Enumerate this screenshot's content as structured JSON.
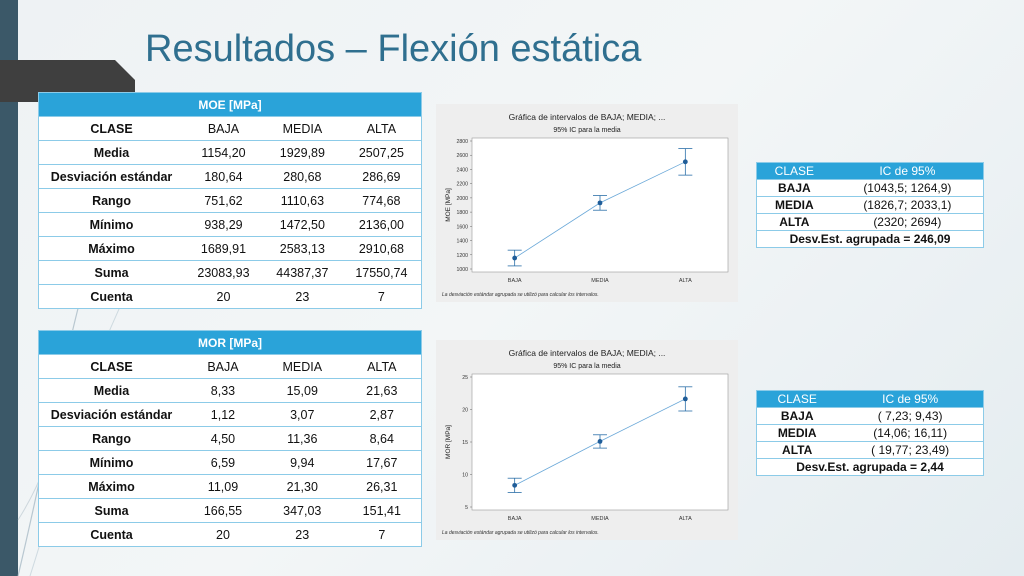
{
  "title": "Resultados – Flexión estática",
  "moe_table": {
    "header": "MOE [MPa]",
    "columns": [
      "CLASE",
      "BAJA",
      "MEDIA",
      "ALTA"
    ],
    "rows": [
      [
        "Media",
        "1154,20",
        "1929,89",
        "2507,25"
      ],
      [
        "Desviación estándar",
        "180,64",
        "280,68",
        "286,69"
      ],
      [
        "Rango",
        "751,62",
        "1110,63",
        "774,68"
      ],
      [
        "Mínimo",
        "938,29",
        "1472,50",
        "2136,00"
      ],
      [
        "Máximo",
        "1689,91",
        "2583,13",
        "2910,68"
      ],
      [
        "Suma",
        "23083,93",
        "44387,37",
        "17550,74"
      ],
      [
        "Cuenta",
        "20",
        "23",
        "7"
      ]
    ]
  },
  "mor_table": {
    "header": "MOR [MPa]",
    "columns": [
      "CLASE",
      "BAJA",
      "MEDIA",
      "ALTA"
    ],
    "rows": [
      [
        "Media",
        "8,33",
        "15,09",
        "21,63"
      ],
      [
        "Desviación estándar",
        "1,12",
        "3,07",
        "2,87"
      ],
      [
        "Rango",
        "4,50",
        "11,36",
        "8,64"
      ],
      [
        "Mínimo",
        "6,59",
        "9,94",
        "17,67"
      ],
      [
        "Máximo",
        "11,09",
        "21,30",
        "26,31"
      ],
      [
        "Suma",
        "166,55",
        "347,03",
        "151,41"
      ],
      [
        "Cuenta",
        "20",
        "23",
        "7"
      ]
    ]
  },
  "moe_ci": {
    "col1": "CLASE",
    "col2": "IC de 95%",
    "rows": [
      [
        "BAJA",
        "(1043,5; 1264,9)"
      ],
      [
        "MEDIA",
        "(1826,7; 2033,1)"
      ],
      [
        "ALTA",
        "(2320; 2694)"
      ]
    ],
    "footer": "Desv.Est. agrupada = 246,09"
  },
  "mor_ci": {
    "col1": "CLASE",
    "col2": "IC de 95%",
    "rows": [
      [
        "BAJA",
        "( 7,23; 9,43)"
      ],
      [
        "MEDIA",
        "(14,06; 16,11)"
      ],
      [
        "ALTA",
        "( 19,77; 23,49)"
      ]
    ],
    "footer": "Desv.Est. agrupada = 2,44"
  },
  "colors": {
    "accent": "#2aa3d9",
    "title": "#2f6f8f",
    "band": "#3b5868",
    "series": "#2b6fa8",
    "line": "#6aa8d8"
  },
  "chart_data": [
    {
      "type": "scatter",
      "title": "Gráfica de intervalos de BAJA; MEDIA; ...",
      "subtitle": "95% IC para la media",
      "ylabel": "MOE [MPa]",
      "xlabel": "",
      "categories": [
        "BAJA",
        "MEDIA",
        "ALTA"
      ],
      "means": [
        1154.2,
        1929.89,
        2507.25
      ],
      "ci_low": [
        1043.5,
        1826.7,
        2320
      ],
      "ci_high": [
        1264.9,
        2033.1,
        2694
      ],
      "ylim": [
        1000,
        2800
      ],
      "yticks": [
        1000,
        1200,
        1400,
        1600,
        1800,
        2000,
        2200,
        2400,
        2600,
        2800
      ],
      "note": "La desviación estándar agrupada se utilizó para calcular los intervalos.",
      "grid": false
    },
    {
      "type": "scatter",
      "title": "Gráfica de intervalos de BAJA; MEDIA; ...",
      "subtitle": "95% IC para la media",
      "ylabel": "MOR [MPa]",
      "xlabel": "",
      "categories": [
        "BAJA",
        "MEDIA",
        "ALTA"
      ],
      "means": [
        8.33,
        15.09,
        21.63
      ],
      "ci_low": [
        7.23,
        14.06,
        19.77
      ],
      "ci_high": [
        9.43,
        16.11,
        23.49
      ],
      "ylim": [
        5,
        25
      ],
      "yticks": [
        5,
        10,
        15,
        20,
        25
      ],
      "note": "La desviación estándar agrupada se utilizó para calcular los intervalos.",
      "grid": false
    }
  ]
}
